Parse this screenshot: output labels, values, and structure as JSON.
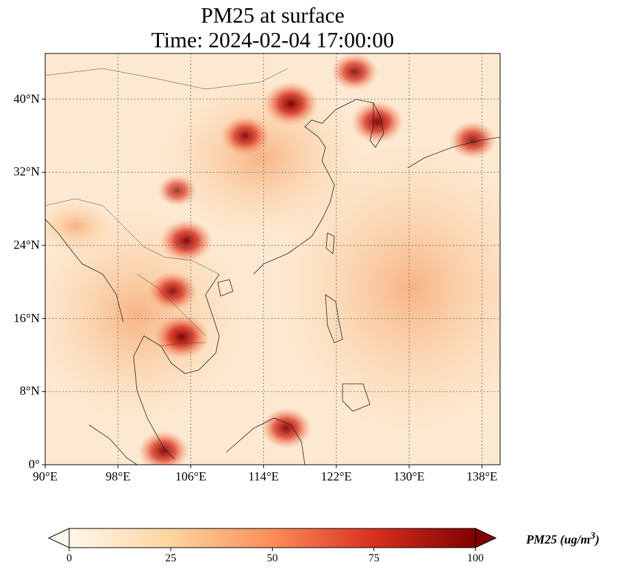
{
  "title": {
    "line1": "PM25 at surface",
    "line2": "Time: 2024-02-04 17:00:00"
  },
  "map": {
    "lon_range": [
      90,
      140
    ],
    "lat_range": [
      0,
      45
    ],
    "lon_ticks": [
      {
        "value": 90,
        "label": "90°E"
      },
      {
        "value": 98,
        "label": "98°E"
      },
      {
        "value": 106,
        "label": "106°E"
      },
      {
        "value": 114,
        "label": "114°E"
      },
      {
        "value": 122,
        "label": "122°E"
      },
      {
        "value": 130,
        "label": "130°E"
      },
      {
        "value": 138,
        "label": "138°E"
      }
    ],
    "lat_ticks": [
      {
        "value": 0,
        "label": "0°"
      },
      {
        "value": 8,
        "label": "8°N"
      },
      {
        "value": 16,
        "label": "16°N"
      },
      {
        "value": 24,
        "label": "24°N"
      },
      {
        "value": 32,
        "label": "32°N"
      },
      {
        "value": 40,
        "label": "40°N"
      }
    ],
    "gridlines": true,
    "colormap": "OrRd",
    "colors": [
      "#fff7ec",
      "#fdd49e",
      "#fc8d59",
      "#d7301f",
      "#7f0000"
    ],
    "hotspots": [
      {
        "name": "north-china-plain",
        "lon": 117,
        "lat": 39.5,
        "value": 100
      },
      {
        "name": "shanxi",
        "lon": 112,
        "lat": 36,
        "value": 85
      },
      {
        "name": "sichuan",
        "lon": 104.5,
        "lat": 30,
        "value": 60
      },
      {
        "name": "guizhou",
        "lon": 105.5,
        "lat": 24.5,
        "value": 95
      },
      {
        "name": "laos-thailand",
        "lon": 104,
        "lat": 19,
        "value": 85
      },
      {
        "name": "cambodia",
        "lon": 105,
        "lat": 14,
        "value": 100
      },
      {
        "name": "seoul",
        "lon": 126.5,
        "lat": 37.5,
        "value": 95
      },
      {
        "name": "japan",
        "lon": 137,
        "lat": 35.5,
        "value": 80
      },
      {
        "name": "borneo-kk",
        "lon": 116.5,
        "lat": 4,
        "value": 90
      },
      {
        "name": "malaysia",
        "lon": 103,
        "lat": 1.5,
        "value": 90
      },
      {
        "name": "northeast-china",
        "lon": 124,
        "lat": 43,
        "value": 80
      }
    ]
  },
  "colorbar": {
    "label": "PM25 (ug/m",
    "label_sup": "3",
    "label_end": ")",
    "min": 0,
    "max": 100,
    "extend": "both",
    "ticks": [
      {
        "value": 0,
        "label": "0"
      },
      {
        "value": 25,
        "label": "25"
      },
      {
        "value": 50,
        "label": "50"
      },
      {
        "value": 75,
        "label": "75"
      },
      {
        "value": 100,
        "label": "100"
      }
    ]
  }
}
